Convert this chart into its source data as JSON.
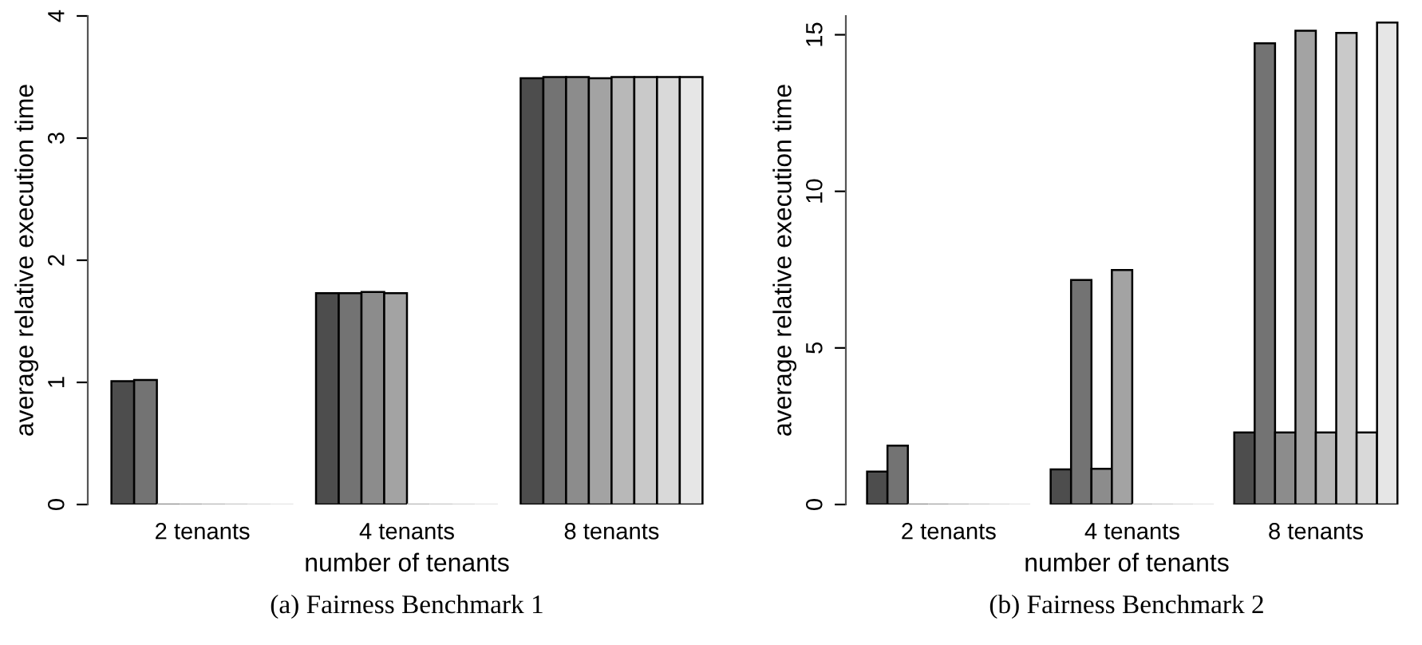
{
  "chart_data": [
    {
      "type": "bar",
      "xlabel": "number of tenants",
      "ylabel": "average relative execution time",
      "categories": [
        "2 tenants",
        "4 tenants",
        "8 tenants"
      ],
      "series": [
        {
          "color": "#4d4d4d",
          "values": [
            1.01,
            1.73,
            3.49
          ]
        },
        {
          "color": "#737373",
          "values": [
            1.02,
            1.73,
            3.5
          ]
        },
        {
          "color": "#8c8c8c",
          "values": [
            0,
            1.74,
            3.5
          ]
        },
        {
          "color": "#a3a3a3",
          "values": [
            0,
            1.73,
            3.49
          ]
        },
        {
          "color": "#b8b8b8",
          "values": [
            0,
            0,
            3.5
          ]
        },
        {
          "color": "#c9c9c9",
          "values": [
            0,
            0,
            3.5
          ]
        },
        {
          "color": "#d9d9d9",
          "values": [
            0,
            0,
            3.5
          ]
        },
        {
          "color": "#e6e6e6",
          "values": [
            0,
            0,
            3.5
          ]
        }
      ],
      "ylim": [
        0,
        4
      ],
      "yticks": [
        0,
        1,
        2,
        3,
        4
      ],
      "grid": false,
      "annotations": [
        "(a) Fairness Benchmark 1"
      ]
    },
    {
      "type": "bar",
      "xlabel": "number of tenants",
      "ylabel": "average relative execution time",
      "categories": [
        "2 tenants",
        "4 tenants",
        "8 tenants"
      ],
      "series": [
        {
          "color": "#4d4d4d",
          "values": [
            1.05,
            1.12,
            2.3
          ]
        },
        {
          "color": "#737373",
          "values": [
            1.88,
            7.17,
            14.73
          ]
        },
        {
          "color": "#8c8c8c",
          "values": [
            0,
            1.14,
            2.3
          ]
        },
        {
          "color": "#a3a3a3",
          "values": [
            0,
            7.49,
            15.13
          ]
        },
        {
          "color": "#b8b8b8",
          "values": [
            0,
            0,
            2.3
          ]
        },
        {
          "color": "#c9c9c9",
          "values": [
            0,
            0,
            15.06
          ]
        },
        {
          "color": "#d9d9d9",
          "values": [
            0,
            0,
            2.3
          ]
        },
        {
          "color": "#e6e6e6",
          "values": [
            0,
            0,
            15.39
          ]
        }
      ],
      "ylim": [
        0,
        15.6
      ],
      "yticks": [
        0,
        5,
        10,
        15
      ],
      "grid": false,
      "annotations": [
        "(b) Fairness Benchmark 2"
      ]
    }
  ]
}
